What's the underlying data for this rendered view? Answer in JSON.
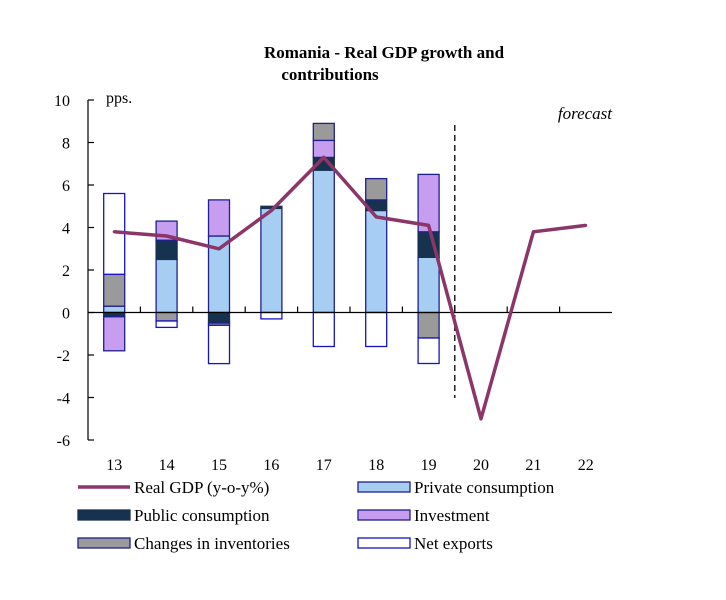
{
  "chart_data": {
    "type": "bar",
    "title_line1": "Romania - Real GDP growth and",
    "title_line2": "contributions",
    "unit_label": "pps.",
    "forecast_label": "forecast",
    "categories": [
      "13",
      "14",
      "15",
      "16",
      "17",
      "18",
      "19",
      "20",
      "21",
      "22"
    ],
    "ylim": [
      -6,
      10
    ],
    "yticks": [
      "10",
      "8",
      "6",
      "4",
      "2",
      "0",
      "-2",
      "-4",
      "-6"
    ],
    "series": [
      {
        "name": "Private consumption",
        "color": "#a6cdf2",
        "border": "#1f1f8f",
        "values": [
          0.3,
          2.5,
          3.6,
          4.9,
          6.7,
          4.8,
          2.6,
          null,
          null,
          null
        ]
      },
      {
        "name": "Public consumption",
        "color": "#17324f",
        "border": "#17324f",
        "values": [
          -0.2,
          0.9,
          -0.5,
          0.1,
          0.6,
          0.5,
          1.2,
          null,
          null,
          null
        ]
      },
      {
        "name": "Investment",
        "color": "#c79df0",
        "border": "#1f1f8f",
        "values": [
          -1.6,
          0.9,
          1.7,
          0.0,
          0.8,
          0.0,
          2.7,
          null,
          null,
          null
        ]
      },
      {
        "name": "Changes in inventories",
        "color": "#9a9a9a",
        "border": "#1f1f8f",
        "values": [
          1.5,
          -0.4,
          -0.1,
          0.0,
          0.8,
          1.0,
          -1.2,
          null,
          null,
          null
        ]
      },
      {
        "name": "Net exports",
        "color": "#ffffff",
        "border": "#1414c8",
        "values": [
          3.8,
          -0.3,
          -1.8,
          -0.3,
          -1.6,
          -1.6,
          -1.2,
          null,
          null,
          null
        ]
      }
    ],
    "line": {
      "name": "Real GDP (y-o-y%)",
      "color": "#8b3569",
      "values": [
        3.8,
        3.6,
        3.0,
        4.8,
        7.3,
        4.5,
        4.1,
        -5.0,
        3.8,
        4.1
      ]
    },
    "legend": [
      "Real GDP (y-o-y%)",
      "Private consumption",
      "Public consumption",
      "Investment",
      "Changes in inventories",
      "Net exports"
    ],
    "forecast_divider_after": "19",
    "grid": false
  }
}
